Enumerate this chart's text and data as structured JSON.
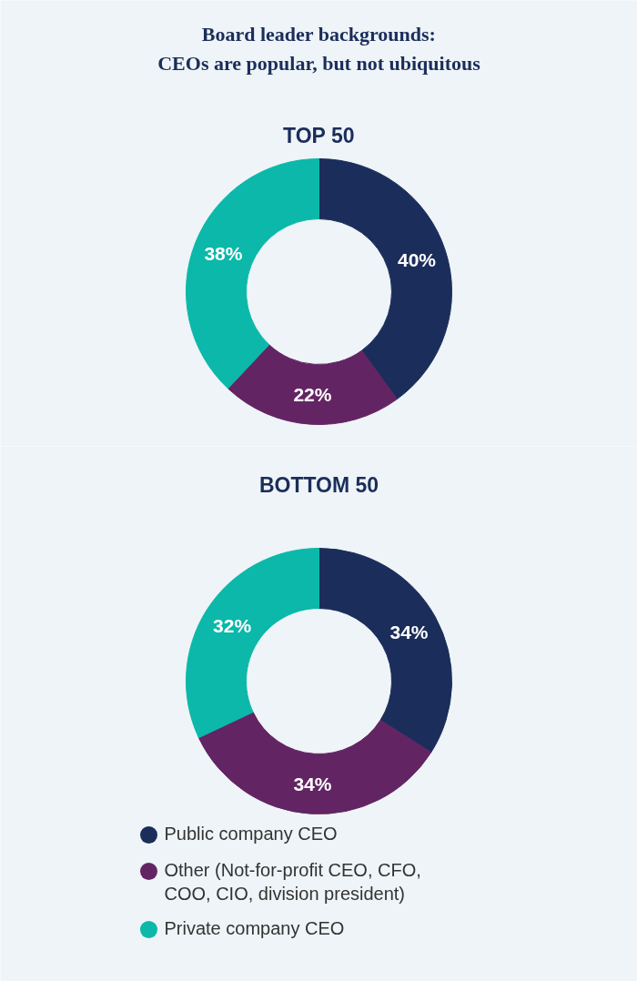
{
  "chart_data": [
    {
      "type": "donut",
      "title": "Board leader backgrounds:\nCEOs are popular, but not ubiquitous",
      "subtitle": "TOP 50",
      "categories": [
        "Public company CEO",
        "Other (Not-for-profit CEO, CFO, COO, CIO, division president)",
        "Private company CEO"
      ],
      "values": [
        40,
        22,
        38
      ],
      "colors": [
        "#1b2d5a",
        "#632463",
        "#0bb8a9"
      ],
      "value_labels": [
        "40%",
        "22%",
        "38%"
      ],
      "legend": "bottom"
    },
    {
      "type": "donut",
      "subtitle": "BOTTOM 50",
      "categories": [
        null,
        null,
        null
      ],
      "values": [
        34,
        34,
        32
      ],
      "colors": [
        "#1b2d5a",
        "#632463",
        "#0bb8a9"
      ],
      "value_labels": [
        "34%",
        "34%",
        "32%"
      ]
    }
  ]
}
